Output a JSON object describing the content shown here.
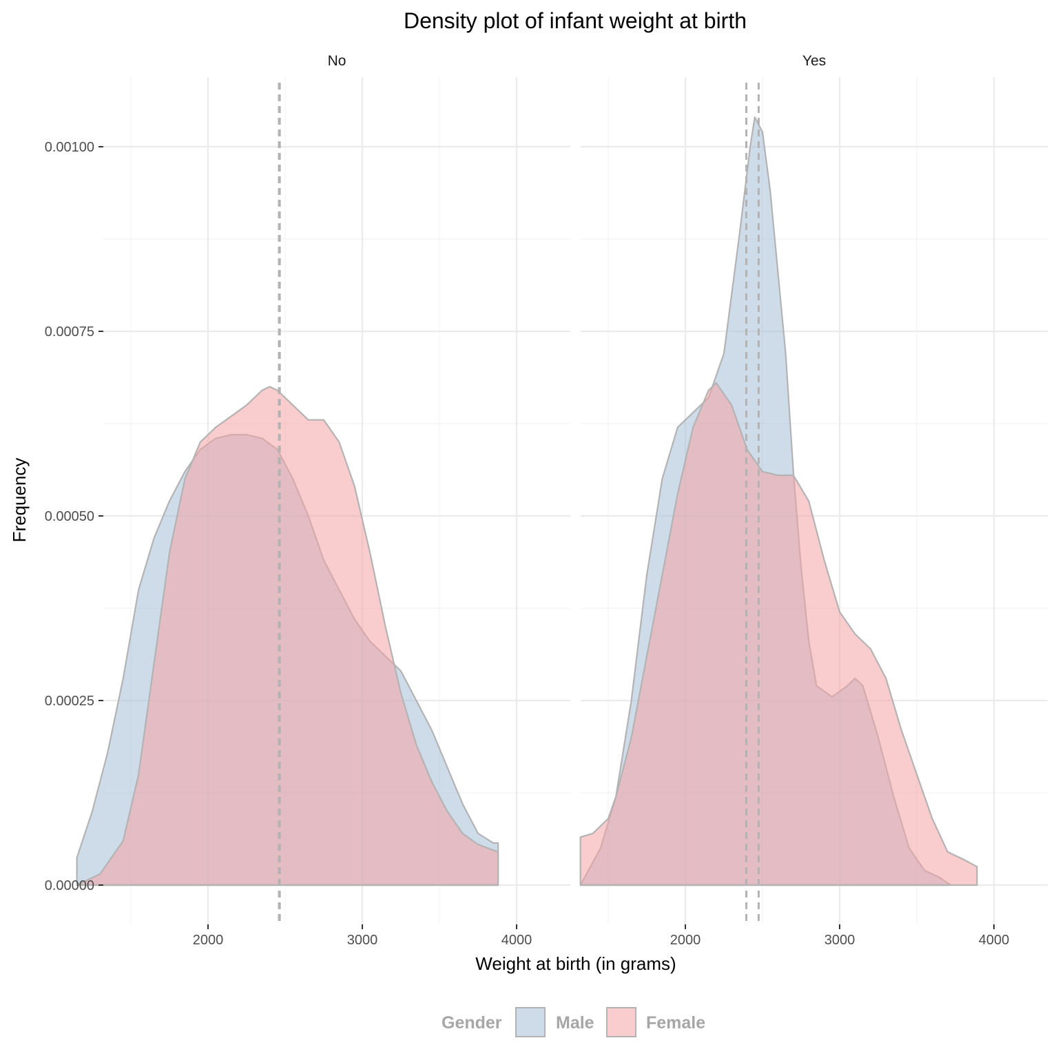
{
  "chart_data": {
    "type": "area",
    "subtype": "density",
    "title": "Density plot of infant weight at birth",
    "xlabel": "Weight at birth (in grams)",
    "ylabel": "Frequency",
    "xlim": [
      1000,
      4000
    ],
    "ylim": [
      -5e-05,
      0.0011
    ],
    "x_ticks": [
      2000,
      3000,
      4000
    ],
    "x_tick_labels": [
      "2000",
      "3000",
      "4000"
    ],
    "y_ticks": [
      0,
      0.00025,
      0.0005,
      0.00075,
      0.001
    ],
    "y_tick_labels": [
      "0.00000",
      "0.00025",
      "0.00050",
      "0.00075",
      "0.00100"
    ],
    "grid": true,
    "legend": {
      "title": "Gender",
      "position": "bottom",
      "items": [
        {
          "label": "Male",
          "color": "#a6bdd7"
        },
        {
          "label": "Female",
          "color": "#f4a3a5"
        }
      ]
    },
    "outline_color": "#b3b3b3",
    "facets": [
      {
        "label": "No",
        "mean_lines": [
          2460,
          2465
        ],
        "series": [
          {
            "name": "Male",
            "color": "#a6bdd7",
            "points": [
              [
                1150,
                3.7e-05
              ],
              [
                1250,
                0.0001
              ],
              [
                1350,
                0.00018
              ],
              [
                1450,
                0.00028
              ],
              [
                1550,
                0.0004
              ],
              [
                1650,
                0.00047
              ],
              [
                1750,
                0.00052
              ],
              [
                1850,
                0.00056
              ],
              [
                1950,
                0.00059
              ],
              [
                2050,
                0.000605
              ],
              [
                2150,
                0.00061
              ],
              [
                2250,
                0.00061
              ],
              [
                2350,
                0.000605
              ],
              [
                2450,
                0.00059
              ],
              [
                2550,
                0.00055
              ],
              [
                2650,
                0.0005
              ],
              [
                2750,
                0.00044
              ],
              [
                2850,
                0.0004
              ],
              [
                2950,
                0.00036
              ],
              [
                3050,
                0.00033
              ],
              [
                3150,
                0.00031
              ],
              [
                3250,
                0.00029
              ],
              [
                3350,
                0.00025
              ],
              [
                3450,
                0.00021
              ],
              [
                3550,
                0.00016
              ],
              [
                3650,
                0.00011
              ],
              [
                3750,
                7e-05
              ],
              [
                3850,
                5.7e-05
              ],
              [
                3880,
                5.7e-05
              ]
            ]
          },
          {
            "name": "Female",
            "color": "#f4a3a5",
            "points": [
              [
                1150,
                0.0
              ],
              [
                1300,
                1.5e-05
              ],
              [
                1450,
                6e-05
              ],
              [
                1550,
                0.00015
              ],
              [
                1650,
                0.0003
              ],
              [
                1750,
                0.00045
              ],
              [
                1850,
                0.00055
              ],
              [
                1950,
                0.0006
              ],
              [
                2050,
                0.00062
              ],
              [
                2150,
                0.000635
              ],
              [
                2250,
                0.00065
              ],
              [
                2350,
                0.00067
              ],
              [
                2400,
                0.000675
              ],
              [
                2450,
                0.00067
              ],
              [
                2550,
                0.00065
              ],
              [
                2650,
                0.00063
              ],
              [
                2750,
                0.00063
              ],
              [
                2850,
                0.0006
              ],
              [
                2950,
                0.00054
              ],
              [
                3050,
                0.00045
              ],
              [
                3150,
                0.00035
              ],
              [
                3250,
                0.00026
              ],
              [
                3350,
                0.00019
              ],
              [
                3450,
                0.00014
              ],
              [
                3550,
                0.0001
              ],
              [
                3650,
                7e-05
              ],
              [
                3750,
                5.5e-05
              ],
              [
                3880,
                4.5e-05
              ]
            ]
          }
        ]
      },
      {
        "label": "Yes",
        "mean_lines": [
          2395,
          2475
        ],
        "series": [
          {
            "name": "Male",
            "color": "#a6bdd7",
            "points": [
              [
                1320,
                0.0
              ],
              [
                1450,
                5e-05
              ],
              [
                1550,
                0.00012
              ],
              [
                1650,
                0.00025
              ],
              [
                1750,
                0.00042
              ],
              [
                1850,
                0.00055
              ],
              [
                1950,
                0.00062
              ],
              [
                2050,
                0.00064
              ],
              [
                2150,
                0.00066
              ],
              [
                2250,
                0.00072
              ],
              [
                2350,
                0.00088
              ],
              [
                2420,
                0.001
              ],
              [
                2450,
                0.00104
              ],
              [
                2500,
                0.00102
              ],
              [
                2550,
                0.00094
              ],
              [
                2650,
                0.00072
              ],
              [
                2700,
                0.00056
              ],
              [
                2750,
                0.00043
              ],
              [
                2800,
                0.00033
              ],
              [
                2850,
                0.00027
              ],
              [
                2950,
                0.000255
              ],
              [
                3050,
                0.00027
              ],
              [
                3100,
                0.00028
              ],
              [
                3150,
                0.00027
              ],
              [
                3250,
                0.0002
              ],
              [
                3350,
                0.00012
              ],
              [
                3450,
                5e-05
              ],
              [
                3550,
                2e-05
              ],
              [
                3650,
                1e-05
              ],
              [
                3720,
                0.0
              ]
            ]
          },
          {
            "name": "Female",
            "color": "#f4a3a5",
            "points": [
              [
                1320,
                6.5e-05
              ],
              [
                1400,
                7e-05
              ],
              [
                1500,
                9e-05
              ],
              [
                1550,
                0.00012
              ],
              [
                1650,
                0.0002
              ],
              [
                1750,
                0.00031
              ],
              [
                1850,
                0.00042
              ],
              [
                1950,
                0.00053
              ],
              [
                2050,
                0.00062
              ],
              [
                2150,
                0.00067
              ],
              [
                2200,
                0.00068
              ],
              [
                2300,
                0.00065
              ],
              [
                2400,
                0.00059
              ],
              [
                2500,
                0.00056
              ],
              [
                2600,
                0.000555
              ],
              [
                2700,
                0.000555
              ],
              [
                2800,
                0.00052
              ],
              [
                2900,
                0.00044
              ],
              [
                3000,
                0.00037
              ],
              [
                3100,
                0.00034
              ],
              [
                3200,
                0.00032
              ],
              [
                3300,
                0.00028
              ],
              [
                3400,
                0.00021
              ],
              [
                3500,
                0.00015
              ],
              [
                3600,
                9e-05
              ],
              [
                3700,
                4.5e-05
              ],
              [
                3800,
                3.5e-05
              ],
              [
                3890,
                2.5e-05
              ]
            ]
          }
        ]
      }
    ]
  }
}
